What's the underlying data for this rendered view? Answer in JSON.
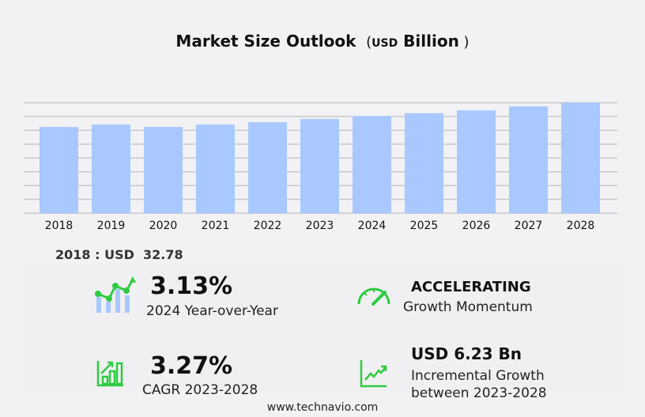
{
  "chart_data": {
    "type": "bar",
    "title": "Market Size Outlook",
    "unit_prefix": "USD",
    "unit_suffix": "Billion",
    "categories": [
      "2018",
      "2019",
      "2020",
      "2021",
      "2022",
      "2023",
      "2024",
      "2025",
      "2026",
      "2027",
      "2028"
    ],
    "values": [
      32.78,
      33.7,
      32.8,
      33.7,
      34.6,
      35.8,
      36.9,
      38.0,
      39.1,
      40.6,
      42.0
    ],
    "ylim": [
      0,
      42
    ],
    "grid": true,
    "bar_color": "#a8c8ff"
  },
  "base_year": {
    "year": "2018",
    "currency": "USD",
    "value": "32.78"
  },
  "stats": {
    "yoy": {
      "value": "3.13%",
      "label": "2024 Year-over-Year"
    },
    "momentum": {
      "value": "ACCELERATING",
      "label": "Growth Momentum"
    },
    "cagr": {
      "value": "3.27%",
      "label": "CAGR 2023-2028"
    },
    "incremental": {
      "value": "USD 6.23 Bn",
      "label_line1": "Incremental Growth",
      "label_line2": "between 2023-2028"
    }
  },
  "colors": {
    "accent_green": "#2ecc40",
    "icon_blue": "#a8c8ff"
  },
  "footer": "www.technavio.com"
}
